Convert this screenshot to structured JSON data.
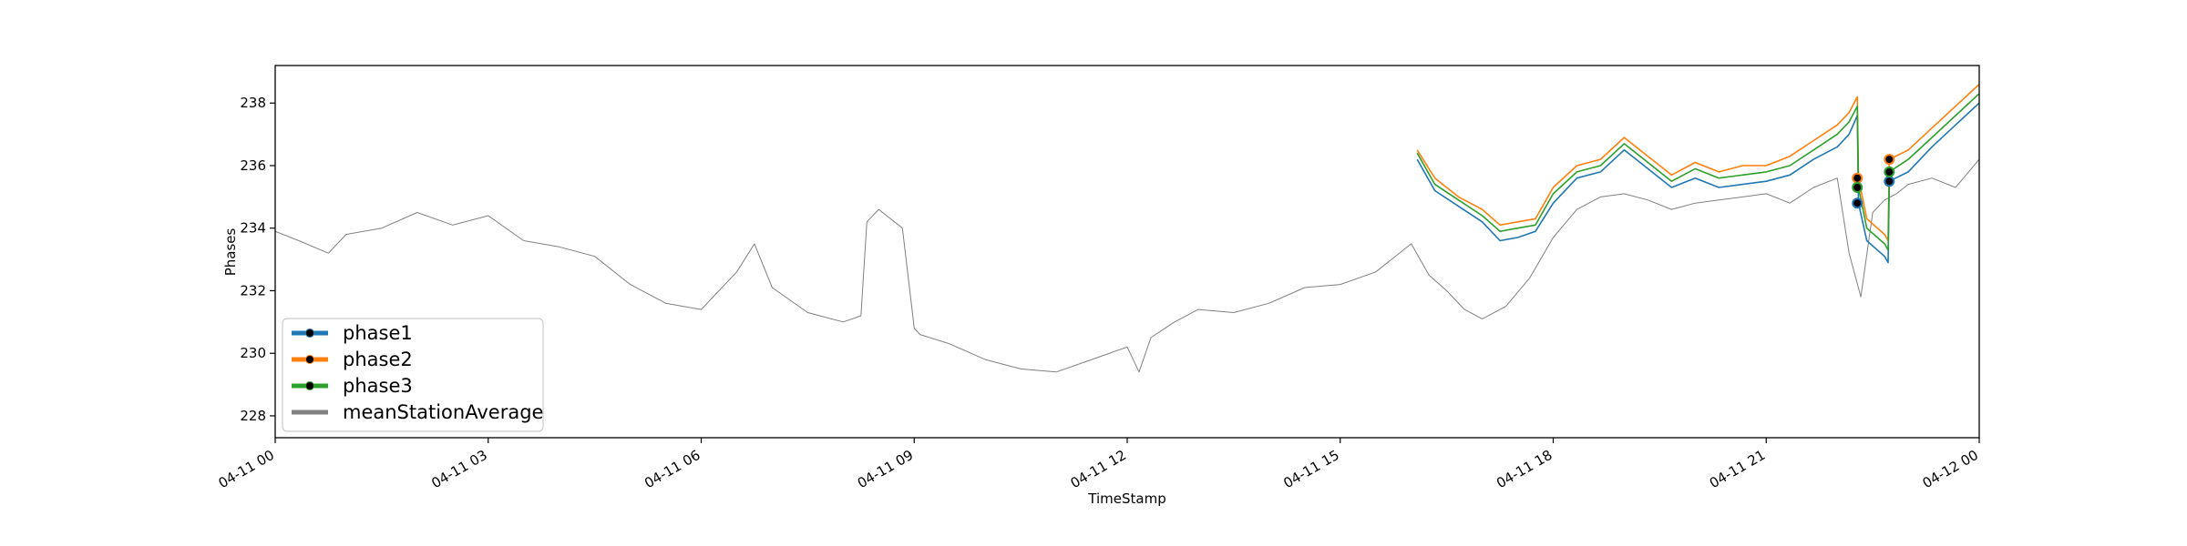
{
  "chart_data": {
    "type": "line",
    "title": "",
    "xlabel": "TimeStamp",
    "ylabel": "Phases",
    "xlim": [
      "04-11 00:00",
      "04-12 00:00"
    ],
    "ylim": [
      227.3,
      239.2
    ],
    "x_ticks": [
      "04-11 00",
      "04-11 03",
      "04-11 06",
      "04-11 09",
      "04-11 12",
      "04-11 15",
      "04-11 18",
      "04-11 21",
      "04-12 00"
    ],
    "y_ticks": [
      228,
      230,
      232,
      234,
      236,
      238
    ],
    "grid": false,
    "legend_position": "lower-left",
    "series": [
      {
        "name": "phase1",
        "color": "#1f77b4",
        "x": [
          "04-11 16:05",
          "04-11 16:20",
          "04-11 16:40",
          "04-11 17:00",
          "04-11 17:15",
          "04-11 17:30",
          "04-11 17:45",
          "04-11 18:00",
          "04-11 18:20",
          "04-11 18:40",
          "04-11 19:00",
          "04-11 19:20",
          "04-11 19:40",
          "04-11 20:00",
          "04-11 20:20",
          "04-11 20:40",
          "04-11 21:00",
          "04-11 21:20",
          "04-11 21:40",
          "04-11 22:00",
          "04-11 22:10",
          "04-11 22:17",
          "04-11 22:18",
          "04-11 22:25",
          "04-11 22:40",
          "04-11 22:43",
          "04-11 22:44",
          "04-11 23:00",
          "04-11 23:20",
          "04-11 23:40",
          "04-12 00:00"
        ],
        "y": [
          236.2,
          235.2,
          234.7,
          234.2,
          233.6,
          233.7,
          233.9,
          234.8,
          235.6,
          235.8,
          236.5,
          235.9,
          235.3,
          235.6,
          235.3,
          235.4,
          235.5,
          235.7,
          236.2,
          236.6,
          237.0,
          237.6,
          234.8,
          233.6,
          233.1,
          232.9,
          235.5,
          235.8,
          236.6,
          237.3,
          238.0
        ]
      },
      {
        "name": "phase2",
        "color": "#ff7f0e",
        "x": [
          "04-11 16:05",
          "04-11 16:20",
          "04-11 16:40",
          "04-11 17:00",
          "04-11 17:15",
          "04-11 17:30",
          "04-11 17:45",
          "04-11 18:00",
          "04-11 18:20",
          "04-11 18:40",
          "04-11 19:00",
          "04-11 19:20",
          "04-11 19:40",
          "04-11 20:00",
          "04-11 20:20",
          "04-11 20:40",
          "04-11 21:00",
          "04-11 21:20",
          "04-11 21:40",
          "04-11 22:00",
          "04-11 22:10",
          "04-11 22:17",
          "04-11 22:18",
          "04-11 22:25",
          "04-11 22:40",
          "04-11 22:43",
          "04-11 22:44",
          "04-11 23:00",
          "04-11 23:20",
          "04-11 23:40",
          "04-12 00:00"
        ],
        "y": [
          236.5,
          235.6,
          235.0,
          234.6,
          234.1,
          234.2,
          234.3,
          235.3,
          236.0,
          236.2,
          236.9,
          236.3,
          235.7,
          236.1,
          235.8,
          236.0,
          236.0,
          236.3,
          236.8,
          237.3,
          237.7,
          238.2,
          235.6,
          234.3,
          233.8,
          233.6,
          236.2,
          236.5,
          237.2,
          237.9,
          238.6
        ]
      },
      {
        "name": "phase3",
        "color": "#2ca02c",
        "x": [
          "04-11 16:05",
          "04-11 16:20",
          "04-11 16:40",
          "04-11 17:00",
          "04-11 17:15",
          "04-11 17:30",
          "04-11 17:45",
          "04-11 18:00",
          "04-11 18:20",
          "04-11 18:40",
          "04-11 19:00",
          "04-11 19:20",
          "04-11 19:40",
          "04-11 20:00",
          "04-11 20:20",
          "04-11 20:40",
          "04-11 21:00",
          "04-11 21:20",
          "04-11 21:40",
          "04-11 22:00",
          "04-11 22:10",
          "04-11 22:17",
          "04-11 22:18",
          "04-11 22:25",
          "04-11 22:40",
          "04-11 22:43",
          "04-11 22:44",
          "04-11 23:00",
          "04-11 23:20",
          "04-11 23:40",
          "04-12 00:00"
        ],
        "y": [
          236.4,
          235.4,
          234.9,
          234.4,
          233.9,
          234.0,
          234.1,
          235.1,
          235.8,
          236.0,
          236.7,
          236.1,
          235.5,
          235.9,
          235.6,
          235.7,
          235.8,
          236.0,
          236.5,
          237.0,
          237.4,
          237.9,
          235.3,
          234.0,
          233.5,
          233.3,
          235.8,
          236.2,
          236.9,
          237.6,
          238.3
        ]
      },
      {
        "name": "meanStationAverage",
        "color": "#808080",
        "x": [
          "04-11 00:00",
          "04-11 00:20",
          "04-11 00:45",
          "04-11 01:00",
          "04-11 01:30",
          "04-11 02:00",
          "04-11 02:30",
          "04-11 03:00",
          "04-11 03:30",
          "04-11 04:00",
          "04-11 04:30",
          "04-11 05:00",
          "04-11 05:30",
          "04-11 06:00",
          "04-11 06:30",
          "04-11 06:45",
          "04-11 07:00",
          "04-11 07:30",
          "04-11 08:00",
          "04-11 08:15",
          "04-11 08:20",
          "04-11 08:30",
          "04-11 08:50",
          "04-11 09:00",
          "04-11 09:05",
          "04-11 09:30",
          "04-11 10:00",
          "04-11 10:30",
          "04-11 11:00",
          "04-11 11:30",
          "04-11 12:00",
          "04-11 12:10",
          "04-11 12:20",
          "04-11 12:40",
          "04-11 13:00",
          "04-11 13:30",
          "04-11 14:00",
          "04-11 14:30",
          "04-11 15:00",
          "04-11 15:30",
          "04-11 16:00",
          "04-11 16:15",
          "04-11 16:30",
          "04-11 16:45",
          "04-11 17:00",
          "04-11 17:20",
          "04-11 17:40",
          "04-11 18:00",
          "04-11 18:20",
          "04-11 18:40",
          "04-11 19:00",
          "04-11 19:20",
          "04-11 19:40",
          "04-11 20:00",
          "04-11 20:20",
          "04-11 20:40",
          "04-11 21:00",
          "04-11 21:20",
          "04-11 21:40",
          "04-11 22:00",
          "04-11 22:10",
          "04-11 22:20",
          "04-11 22:30",
          "04-11 22:40",
          "04-11 22:50",
          "04-11 23:00",
          "04-11 23:20",
          "04-11 23:40",
          "04-12 00:00"
        ],
        "y": [
          233.9,
          233.6,
          233.2,
          233.8,
          234.0,
          234.5,
          234.1,
          234.4,
          233.6,
          233.4,
          233.1,
          232.2,
          231.6,
          231.4,
          232.6,
          233.5,
          232.1,
          231.3,
          231.0,
          231.2,
          234.2,
          234.6,
          234.0,
          230.8,
          230.6,
          230.3,
          229.8,
          229.5,
          229.4,
          229.8,
          230.2,
          229.4,
          230.5,
          231.0,
          231.4,
          231.3,
          231.6,
          232.1,
          232.2,
          232.6,
          233.5,
          232.5,
          232.0,
          231.4,
          231.1,
          231.5,
          232.4,
          233.7,
          234.6,
          235.0,
          235.1,
          234.9,
          234.6,
          234.8,
          234.9,
          235.0,
          235.1,
          234.8,
          235.3,
          235.6,
          233.2,
          231.8,
          234.5,
          234.9,
          235.1,
          235.4,
          235.6,
          235.3,
          236.2
        ]
      }
    ],
    "markers": [
      {
        "series": "phase1",
        "x": "04-11 22:17",
        "y": 234.8
      },
      {
        "series": "phase2",
        "x": "04-11 22:17",
        "y": 235.6
      },
      {
        "series": "phase3",
        "x": "04-11 22:17",
        "y": 235.3
      },
      {
        "series": "phase1",
        "x": "04-11 22:44",
        "y": 235.5
      },
      {
        "series": "phase2",
        "x": "04-11 22:44",
        "y": 236.2
      },
      {
        "series": "phase3",
        "x": "04-11 22:44",
        "y": 235.8
      }
    ]
  }
}
